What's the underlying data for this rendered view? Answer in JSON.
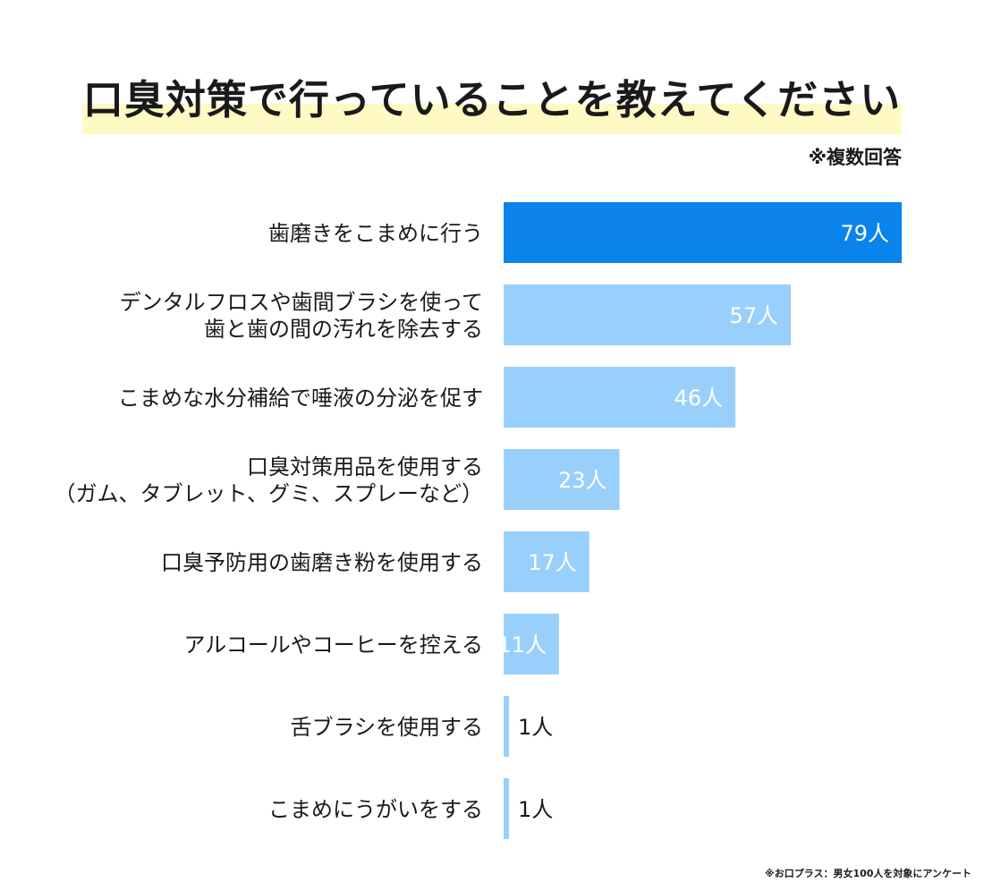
{
  "chart_data": {
    "type": "bar",
    "orientation": "horizontal",
    "title": "口臭対策で行っていることを教えてください",
    "note": "※複数回答",
    "categories": [
      [
        "歯磨きをこまめに行う"
      ],
      [
        "デンタルフロスや歯間ブラシを使って",
        "歯と歯の間の汚れを除去する"
      ],
      [
        "こまめな水分補給で唾液の分泌を促す"
      ],
      [
        "口臭対策用品を使用する",
        "（ガム、タブレット、グミ、スプレーなど）"
      ],
      [
        "口臭予防用の歯磨き粉を使用する"
      ],
      [
        "アルコールやコーヒーを控える"
      ],
      [
        "舌ブラシを使用する"
      ],
      [
        "こまめにうがいをする"
      ]
    ],
    "values": [
      79,
      57,
      46,
      23,
      17,
      11,
      1,
      1
    ],
    "value_labels": [
      "79人",
      "57人",
      "46人",
      "23人",
      "17人",
      "11人",
      "1人",
      "1人"
    ],
    "xlim": [
      0,
      79
    ],
    "grid": false,
    "colors": {
      "highlight": "#0a84ea",
      "bar": "#99d0fb",
      "label_inside": "#ffffff",
      "label_outside": "#1a1a1a",
      "title_highlight": "#fff9c4"
    }
  },
  "footer": "※お口プラス：男女100人を対象にアンケート"
}
